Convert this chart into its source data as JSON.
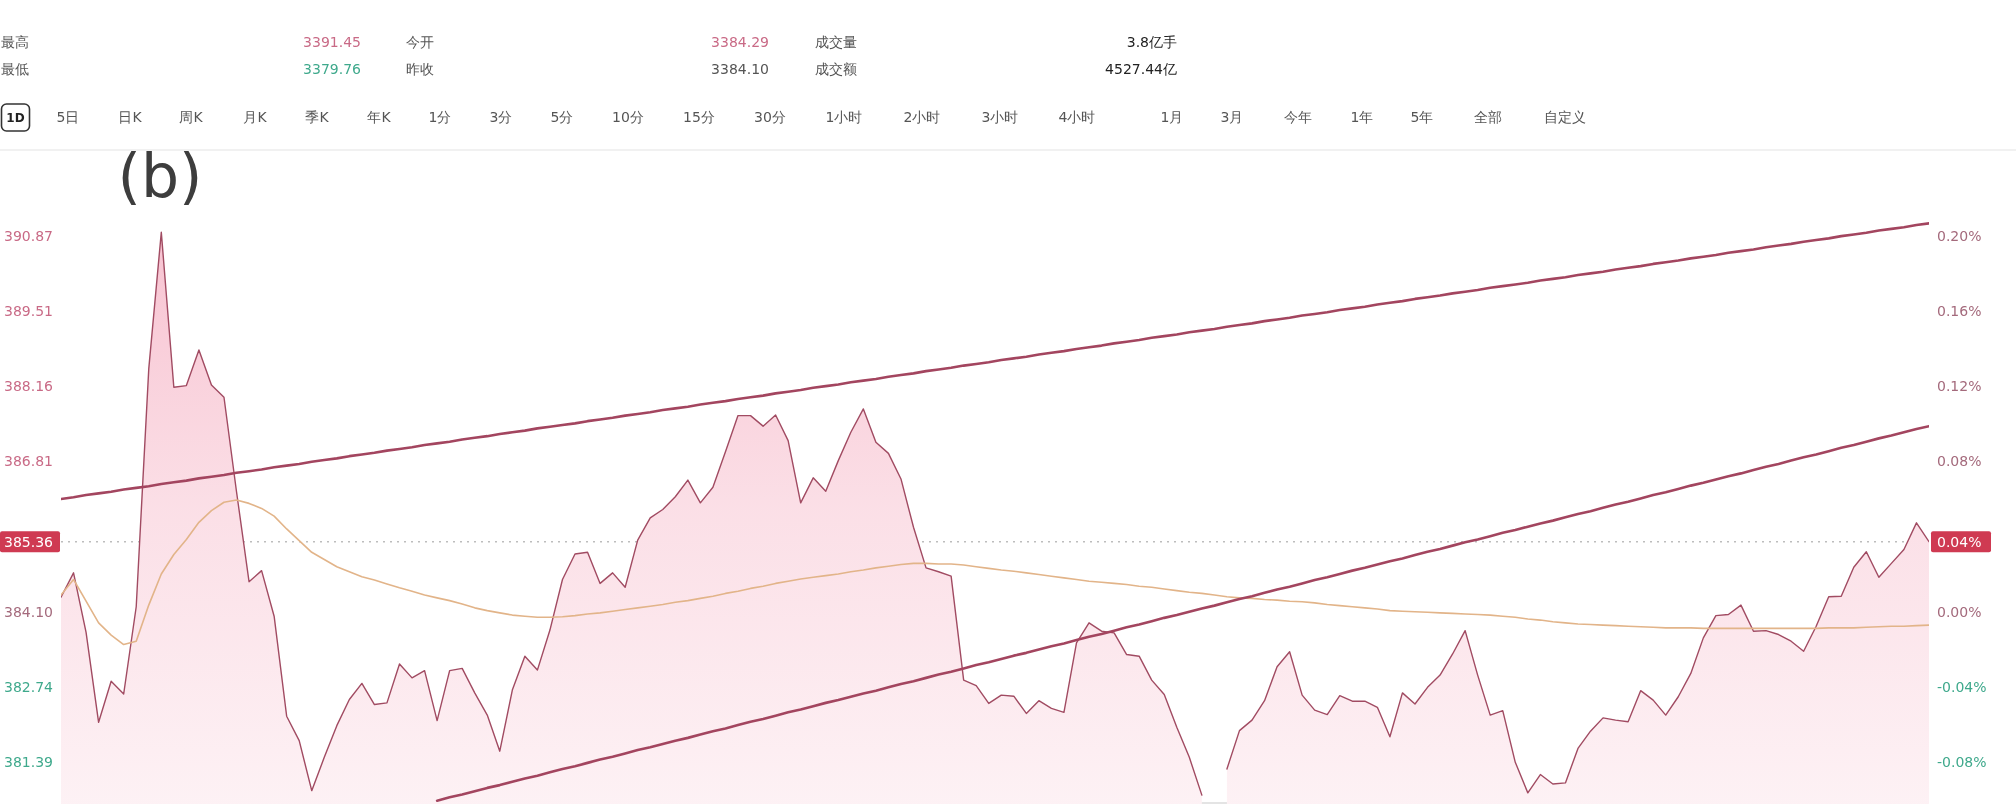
{
  "chart_data": {
    "type": "area",
    "categories": [
      null,
      null,
      null,
      null,
      null,
      null,
      null,
      null,
      null,
      null,
      null,
      null,
      null,
      null,
      null,
      null,
      null,
      null,
      null,
      null,
      null,
      null,
      null,
      null,
      null,
      null,
      null,
      null,
      null,
      null,
      null,
      null,
      null,
      null,
      null,
      null,
      null,
      null,
      null,
      null,
      null,
      null,
      null,
      null,
      null,
      null,
      null,
      null,
      null,
      null,
      null,
      null,
      null,
      null,
      null,
      null,
      null,
      null,
      null,
      null,
      null,
      null,
      null,
      null,
      null,
      null,
      null,
      null,
      null,
      null,
      null,
      null,
      null,
      null,
      null,
      null,
      null,
      null,
      null,
      null,
      null,
      null,
      null,
      null,
      null,
      null,
      null,
      null,
      null,
      null,
      null,
      null,
      null,
      null,
      null,
      null,
      null,
      null,
      null,
      null,
      null,
      null,
      null,
      null,
      null,
      null,
      null,
      null,
      null,
      null,
      null,
      null,
      null,
      null,
      null,
      null,
      null,
      null,
      null,
      null,
      null,
      null,
      null,
      null,
      null,
      null,
      null,
      null,
      null,
      null,
      null,
      null,
      null,
      null,
      null,
      null,
      null,
      null,
      null,
      null,
      null,
      null,
      null,
      null,
      null,
      null,
      null,
      null,
      null,
      null
    ],
    "series": [
      {
        "color": "#a14b62",
        "values": [
          384.36,
          384.8,
          383.73,
          382.11,
          382.85,
          382.62,
          384.19,
          388.47,
          390.93,
          388.14,
          388.17,
          388.81,
          388.18,
          387.96,
          386.26,
          384.64,
          384.84,
          384.02,
          382.22,
          381.78,
          380.88,
          381.48,
          382.05,
          382.52,
          382.81,
          382.43,
          382.46,
          383.16,
          382.91,
          383.04,
          382.14,
          383.04,
          383.08,
          382.64,
          382.24,
          381.59,
          382.69,
          383.3,
          383.05,
          383.77,
          384.68,
          385.14,
          385.17,
          384.61,
          384.8,
          384.54,
          385.39,
          385.79,
          385.94,
          386.17,
          386.47,
          386.06,
          386.34,
          386.98,
          387.63,
          387.63,
          387.44,
          387.64,
          387.18,
          386.06,
          386.51,
          386.27,
          386.82,
          387.33,
          387.75,
          387.15,
          386.95,
          386.49,
          385.62,
          384.89,
          384.82,
          384.74,
          382.87,
          382.77,
          382.45,
          382.6,
          382.58,
          382.27,
          382.5,
          382.36,
          382.29,
          383.54,
          383.9,
          383.75,
          383.72,
          383.33,
          383.3,
          382.87,
          382.61,
          382.02,
          381.48,
          380.8,
          null,
          381.27,
          381.96,
          382.15,
          382.5,
          383.11,
          383.38,
          382.6,
          382.33,
          382.25,
          382.59,
          382.49,
          382.49,
          382.38,
          381.85,
          382.64,
          382.44,
          382.74,
          382.96,
          383.34,
          383.76,
          382.96,
          382.24,
          382.32,
          381.39,
          380.84,
          381.17,
          381.0,
          381.02,
          381.64,
          381.95,
          382.19,
          382.15,
          382.12,
          382.68,
          382.51,
          382.24,
          382.57,
          382.99,
          383.63,
          384.03,
          384.05,
          384.22,
          383.75,
          383.76,
          383.69,
          383.57,
          383.39,
          383.84,
          384.37,
          384.38,
          384.9,
          385.18,
          384.72,
          384.97,
          385.22,
          385.7,
          385.36
        ]
      },
      {
        "type": "line",
        "color": "#e2b489",
        "values": [
          384.4,
          384.68,
          384.29,
          383.9,
          383.68,
          383.51,
          383.57,
          384.22,
          384.78,
          385.13,
          385.4,
          385.71,
          385.92,
          386.07,
          386.11,
          386.05,
          385.96,
          385.82,
          385.59,
          385.38,
          385.17,
          385.04,
          384.91,
          384.82,
          384.73,
          384.67,
          384.6,
          384.53,
          384.47,
          384.4,
          384.35,
          384.3,
          384.24,
          384.17,
          384.12,
          384.08,
          384.04,
          384.02,
          384.0,
          384.0,
          384.01,
          384.03,
          384.06,
          384.08,
          384.11,
          384.14,
          384.17,
          384.2,
          384.23,
          384.27,
          384.3,
          384.34,
          384.38,
          384.43,
          384.47,
          384.52,
          384.56,
          384.61,
          384.65,
          384.69,
          384.72,
          384.75,
          384.78,
          384.82,
          384.85,
          384.89,
          384.92,
          384.95,
          384.97,
          384.97,
          384.96,
          384.96,
          384.94,
          384.91,
          384.88,
          384.85,
          384.83,
          384.8,
          384.77,
          384.74,
          384.71,
          384.68,
          384.65,
          384.63,
          384.61,
          384.59,
          384.56,
          384.54,
          384.51,
          384.48,
          384.45,
          384.43,
          384.4,
          384.37,
          384.35,
          384.34,
          384.32,
          384.31,
          384.29,
          384.28,
          384.26,
          384.23,
          384.21,
          384.19,
          384.17,
          384.15,
          384.12,
          384.11,
          384.1,
          384.09,
          384.08,
          384.07,
          384.06,
          384.05,
          384.04,
          384.02,
          384.0,
          383.97,
          383.95,
          383.92,
          383.9,
          383.88,
          383.87,
          383.86,
          383.85,
          383.84,
          383.83,
          383.82,
          383.81,
          383.81,
          383.81,
          383.8,
          383.8,
          383.8,
          383.8,
          383.8,
          383.8,
          383.8,
          383.8,
          383.8,
          383.8,
          383.81,
          383.81,
          383.81,
          383.82,
          383.83,
          383.84,
          383.84,
          383.85,
          383.86
        ]
      },
      {
        "type": "line",
        "color": "#a3455f",
        "values": [
          386.13,
          386.16,
          386.2,
          386.23,
          386.26,
          386.3,
          386.33,
          386.36,
          386.4,
          386.43,
          386.46,
          386.5,
          386.53,
          386.56,
          386.6,
          386.63,
          386.66,
          386.7,
          386.73,
          386.76,
          386.8,
          386.83,
          386.86,
          386.9,
          386.93,
          386.96,
          387.0,
          387.03,
          387.06,
          387.1,
          387.13,
          387.16,
          387.2,
          387.23,
          387.26,
          387.3,
          387.33,
          387.36,
          387.4,
          387.43,
          387.46,
          387.49,
          387.53,
          387.56,
          387.59,
          387.63,
          387.66,
          387.69,
          387.73,
          387.76,
          387.79,
          387.83,
          387.86,
          387.89,
          387.93,
          387.96,
          387.99,
          388.03,
          388.06,
          388.09,
          388.13,
          388.16,
          388.19,
          388.23,
          388.26,
          388.29,
          388.33,
          388.36,
          388.39,
          388.43,
          388.46,
          388.49,
          388.53,
          388.56,
          388.59,
          388.63,
          388.66,
          388.69,
          388.73,
          388.76,
          388.79,
          388.83,
          388.86,
          388.89,
          388.93,
          388.96,
          388.99,
          389.03,
          389.06,
          389.09,
          389.13,
          389.16,
          389.19,
          389.23,
          389.26,
          389.29,
          389.33,
          389.36,
          389.39,
          389.43,
          389.46,
          389.49,
          389.53,
          389.56,
          389.59,
          389.63,
          389.66,
          389.69,
          389.73,
          389.76,
          389.79,
          389.83,
          389.86,
          389.89,
          389.93,
          389.96,
          389.99,
          390.02,
          390.06,
          390.09,
          390.12,
          390.16,
          390.19,
          390.22,
          390.26,
          390.29,
          390.32,
          390.36,
          390.39,
          390.42,
          390.46,
          390.49,
          390.52,
          390.56,
          390.59,
          390.62,
          390.66,
          390.69,
          390.72,
          390.76,
          390.79,
          390.82,
          390.86,
          390.89,
          390.92,
          390.96,
          390.99,
          391.02,
          391.06,
          391.09
        ]
      },
      {
        "type": "line",
        "color": "#a3455f",
        "values": [
          null,
          null,
          null,
          null,
          null,
          null,
          null,
          null,
          null,
          null,
          null,
          null,
          null,
          null,
          null,
          null,
          null,
          null,
          null,
          null,
          null,
          null,
          null,
          null,
          null,
          null,
          null,
          null,
          null,
          null,
          380.7,
          380.76,
          380.81,
          380.87,
          380.93,
          380.98,
          381.04,
          381.1,
          381.15,
          381.21,
          381.27,
          381.32,
          381.38,
          381.44,
          381.49,
          381.55,
          381.61,
          381.66,
          381.72,
          381.78,
          381.83,
          381.89,
          381.95,
          382.0,
          382.06,
          382.12,
          382.17,
          382.23,
          382.29,
          382.34,
          382.4,
          382.46,
          382.51,
          382.57,
          382.63,
          382.68,
          382.74,
          382.8,
          382.85,
          382.91,
          382.97,
          383.02,
          383.08,
          383.14,
          383.19,
          383.25,
          383.31,
          383.36,
          383.42,
          383.48,
          383.53,
          383.59,
          383.65,
          383.7,
          383.76,
          383.82,
          383.87,
          383.93,
          383.99,
          384.04,
          384.1,
          384.16,
          384.21,
          384.27,
          384.33,
          384.38,
          384.44,
          384.5,
          384.55,
          384.61,
          384.67,
          384.72,
          384.78,
          384.84,
          384.89,
          384.95,
          385.01,
          385.06,
          385.12,
          385.18,
          385.23,
          385.29,
          385.35,
          385.4,
          385.46,
          385.52,
          385.57,
          385.63,
          385.69,
          385.74,
          385.8,
          385.86,
          385.91,
          385.97,
          386.03,
          386.08,
          386.14,
          386.2,
          386.25,
          386.31,
          386.37,
          386.42,
          386.48,
          386.54,
          386.59,
          386.65,
          386.71,
          386.76,
          386.82,
          386.88,
          386.93,
          386.99,
          387.05,
          387.1,
          387.16,
          387.22,
          387.27,
          387.33,
          387.39,
          387.44
        ]
      }
    ],
    "ylim": [
      380.64,
      392.41
    ],
    "yticks": [
      {
        "value": 381.39,
        "label": "381.39"
      },
      {
        "value": 382.74,
        "label": "382.74"
      },
      {
        "value": 384.1,
        "label": "384.10"
      },
      {
        "value": 386.81,
        "label": "386.81"
      },
      {
        "value": 388.16,
        "label": "388.16"
      },
      {
        "value": 389.51,
        "label": "389.51"
      },
      {
        "value": 390.87,
        "label": "390.87"
      }
    ],
    "y2lim": [
      -0.1022,
      0.2456
    ],
    "y2ticks": [
      {
        "value": -0.08,
        "label": "-0.08%"
      },
      {
        "value": -0.04,
        "label": "-0.04%"
      },
      {
        "value": 0,
        "label": "0.00%"
      },
      {
        "value": 0.08,
        "label": "0.08%"
      },
      {
        "value": 0.12,
        "label": "0.12%"
      },
      {
        "value": 0.16,
        "label": "0.16%"
      },
      {
        "value": 0.2,
        "label": "0.20%"
      }
    ],
    "ref_lines": [
      {
        "axis": "y",
        "value": 385.36,
        "label": "385.36",
        "color": "#bdbdbd",
        "line_style": "dotted"
      }
    ],
    "annotations": [
      "(b)",
      "最高",
      "3391.45",
      "今开",
      "3384.29",
      "成交量",
      "3.8亿手",
      "最低",
      "3379.76",
      "昨收",
      "3384.10",
      "成交额",
      "4527.44亿",
      "1D",
      "5日",
      "日K",
      "周K",
      "月K",
      "季K",
      "年K",
      "1分",
      "3分",
      "5分",
      "10分",
      "15分",
      "30分",
      "1小时",
      "2小时",
      "3小时",
      "4小时",
      "1月",
      "3月",
      "今年",
      "1年",
      "5年",
      "全部",
      "自定义",
      "0.04%"
    ]
  }
}
